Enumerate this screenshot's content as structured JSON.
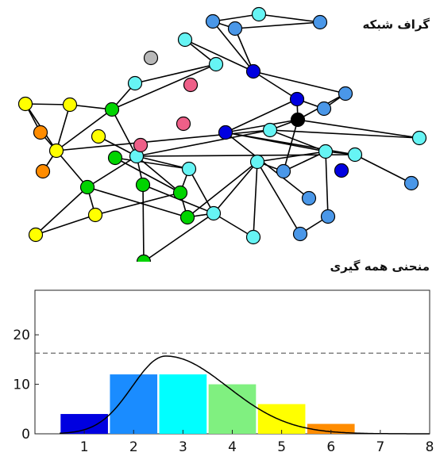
{
  "graph_title": "گراف شبکه",
  "chart_title": "منحنی همه گیری",
  "colors": {
    "yellow": "#ffff00",
    "orange": "#ff8c00",
    "green": "#00d400",
    "cyan": "#66f4f4",
    "blue": "#4a97e8",
    "navy": "#0000e0",
    "black": "#000000",
    "pink": "#ee5f88",
    "gray": "#b8b8b8"
  },
  "graph": {
    "nodes": [
      {
        "id": "n1",
        "c": "blue"
      },
      {
        "id": "n2",
        "c": "cyan"
      },
      {
        "id": "n3",
        "c": "blue"
      },
      {
        "id": "n4",
        "c": "cyan"
      },
      {
        "id": "n5",
        "c": "gray"
      },
      {
        "id": "n6",
        "c": "cyan"
      },
      {
        "id": "n7",
        "c": "blue"
      },
      {
        "id": "n8",
        "c": "navy"
      },
      {
        "id": "n9",
        "c": "pink"
      },
      {
        "id": "n10",
        "c": "cyan"
      },
      {
        "id": "n11",
        "c": "blue"
      },
      {
        "id": "n12",
        "c": "navy"
      },
      {
        "id": "n13",
        "c": "blue"
      },
      {
        "id": "n14",
        "c": "yellow"
      },
      {
        "id": "n15",
        "c": "yellow"
      },
      {
        "id": "n16",
        "c": "green"
      },
      {
        "id": "n17",
        "c": "pink"
      },
      {
        "id": "n18",
        "c": "black"
      },
      {
        "id": "n19",
        "c": "orange"
      },
      {
        "id": "n20",
        "c": "yellow"
      },
      {
        "id": "n21",
        "c": "navy"
      },
      {
        "id": "n22",
        "c": "cyan"
      },
      {
        "id": "n23",
        "c": "cyan"
      },
      {
        "id": "n24",
        "c": "pink"
      },
      {
        "id": "n25",
        "c": "yellow"
      },
      {
        "id": "n26",
        "c": "cyan"
      },
      {
        "id": "n27",
        "c": "green"
      },
      {
        "id": "n28",
        "c": "cyan"
      },
      {
        "id": "n29",
        "c": "cyan"
      },
      {
        "id": "n30",
        "c": "cyan"
      },
      {
        "id": "n31",
        "c": "orange"
      },
      {
        "id": "n32",
        "c": "green"
      },
      {
        "id": "n33",
        "c": "blue"
      },
      {
        "id": "n34",
        "c": "navy"
      },
      {
        "id": "n35",
        "c": "green"
      },
      {
        "id": "n36",
        "c": "cyan"
      },
      {
        "id": "n37",
        "c": "blue"
      },
      {
        "id": "n38",
        "c": "blue"
      },
      {
        "id": "n39",
        "c": "green"
      },
      {
        "id": "n40",
        "c": "cyan"
      },
      {
        "id": "n41",
        "c": "yellow"
      },
      {
        "id": "n42",
        "c": "yellow"
      },
      {
        "id": "n43",
        "c": "blue"
      },
      {
        "id": "n44",
        "c": "blue"
      },
      {
        "id": "n45",
        "c": "cyan"
      },
      {
        "id": "n46",
        "c": "green"
      },
      {
        "id": "n47",
        "c": "green"
      }
    ],
    "edges": [
      [
        "n1",
        "n2"
      ],
      [
        "n2",
        "n3"
      ],
      [
        "n1",
        "n7"
      ],
      [
        "n3",
        "n7"
      ],
      [
        "n7",
        "n8"
      ],
      [
        "n1",
        "n8"
      ],
      [
        "n8",
        "n4"
      ],
      [
        "n4",
        "n6"
      ],
      [
        "n8",
        "n12"
      ],
      [
        "n8",
        "n11"
      ],
      [
        "n12",
        "n13"
      ],
      [
        "n12",
        "n18"
      ],
      [
        "n6",
        "n10"
      ],
      [
        "n11",
        "n18"
      ],
      [
        "n18",
        "n22"
      ],
      [
        "n12",
        "n21"
      ],
      [
        "n18",
        "n21"
      ],
      [
        "n21",
        "n30"
      ],
      [
        "n28",
        "n18"
      ],
      [
        "n28",
        "n23"
      ],
      [
        "n23",
        "n36"
      ],
      [
        "n36",
        "n21"
      ],
      [
        "n37",
        "n36"
      ],
      [
        "n21",
        "n43"
      ],
      [
        "n28",
        "n30"
      ],
      [
        "n30",
        "n33"
      ],
      [
        "n33",
        "n29"
      ],
      [
        "n18",
        "n33"
      ],
      [
        "n30",
        "n29"
      ],
      [
        "n29",
        "n45"
      ],
      [
        "n36",
        "n30"
      ],
      [
        "n30",
        "n44"
      ],
      [
        "n10",
        "n16"
      ],
      [
        "n6",
        "n16"
      ],
      [
        "n16",
        "n23"
      ],
      [
        "n23",
        "n26"
      ],
      [
        "n26",
        "n27"
      ],
      [
        "n27",
        "n39"
      ],
      [
        "n14",
        "n19"
      ],
      [
        "n14",
        "n15"
      ],
      [
        "n15",
        "n16"
      ],
      [
        "n19",
        "n20"
      ],
      [
        "n20",
        "n31"
      ],
      [
        "n20",
        "n16"
      ],
      [
        "n20",
        "n28"
      ],
      [
        "n15",
        "n20"
      ],
      [
        "n20",
        "n32"
      ],
      [
        "n25",
        "n23"
      ],
      [
        "n23",
        "n32"
      ],
      [
        "n32",
        "n41"
      ],
      [
        "n23",
        "n35"
      ],
      [
        "n35",
        "n40"
      ],
      [
        "n40",
        "n26"
      ],
      [
        "n26",
        "n39"
      ],
      [
        "n40",
        "n45"
      ],
      [
        "n41",
        "n42"
      ],
      [
        "n32",
        "n46"
      ],
      [
        "n46",
        "n40"
      ],
      [
        "n40",
        "n47"
      ],
      [
        "n42",
        "n32"
      ],
      [
        "n46",
        "n29"
      ],
      [
        "n40",
        "n29"
      ],
      [
        "n14",
        "n20"
      ],
      [
        "n23",
        "n39"
      ],
      [
        "n11",
        "n13"
      ],
      [
        "n22",
        "n28"
      ],
      [
        "n35",
        "n47"
      ],
      [
        "n39",
        "n41"
      ],
      [
        "n39",
        "n46"
      ],
      [
        "n38",
        "n44"
      ],
      [
        "n38",
        "n29"
      ]
    ]
  },
  "chart_data": {
    "type": "bar",
    "title": "منحنی همه گیری",
    "categories": [
      "1",
      "2",
      "3",
      "4",
      "5",
      "6",
      "7",
      "8"
    ],
    "values": [
      4,
      12,
      12,
      10,
      6,
      2,
      0,
      0
    ],
    "bar_colors": [
      "#0000e0",
      "#1a8cff",
      "#00ffff",
      "#80f080",
      "#ffff00",
      "#ff8c00",
      "#ffffff",
      "#ffffff"
    ],
    "x_ticks": [
      "1",
      "2",
      "3",
      "4",
      "5",
      "6",
      "7",
      "8"
    ],
    "y_ticks": [
      "0",
      "10",
      "20"
    ],
    "xlim": [
      0,
      8
    ],
    "ylim": [
      0,
      29
    ],
    "threshold": 16.3,
    "curve": {
      "peak_x": 2.65,
      "peak_y": 15.7
    },
    "grid": false,
    "xlabel": "",
    "ylabel": ""
  }
}
